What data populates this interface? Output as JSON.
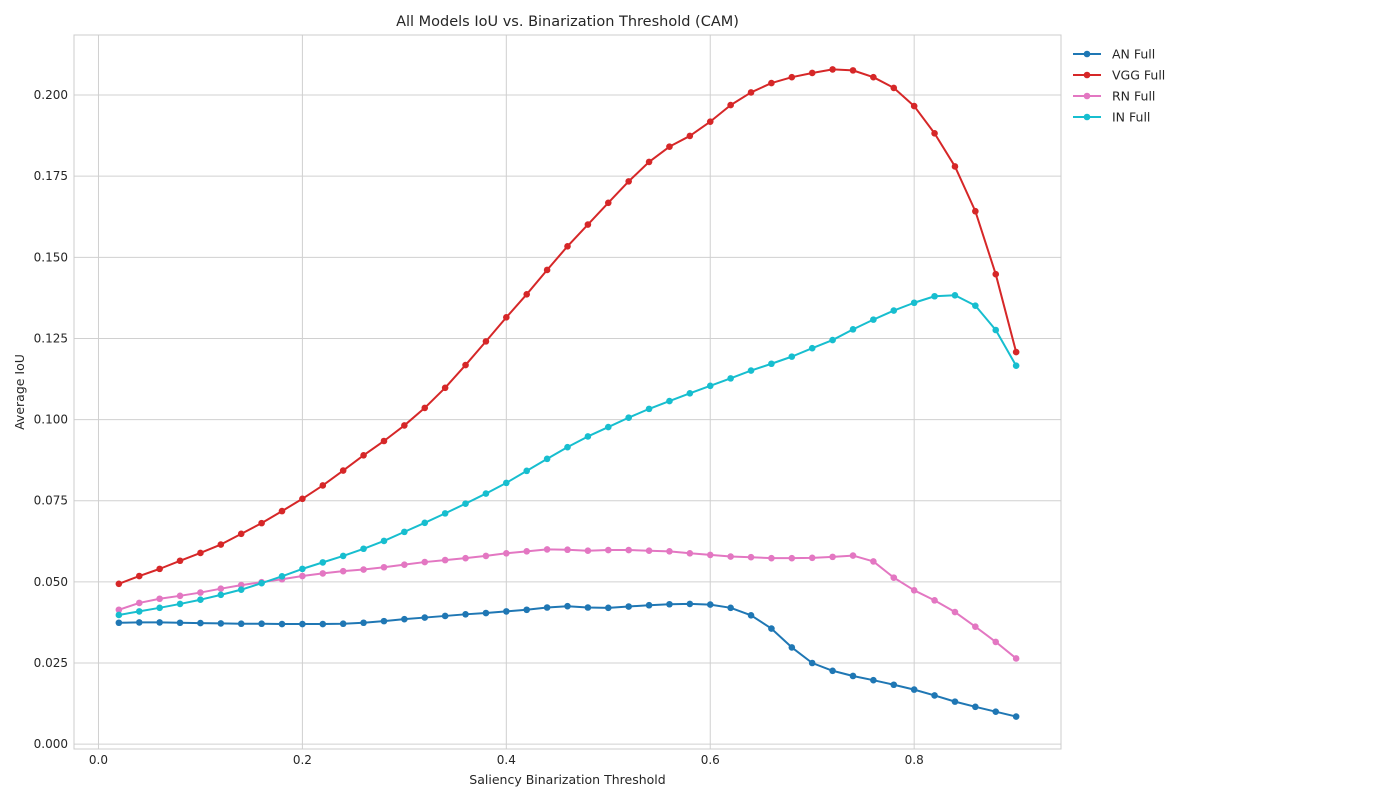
{
  "chart_data": {
    "type": "line",
    "title": "All Models IoU vs. Binarization Threshold (CAM)",
    "xlabel": "Saliency Binarization Threshold",
    "ylabel": "Average IoU",
    "xlim": [
      -0.024,
      0.944
    ],
    "ylim": [
      -0.0015,
      0.2185
    ],
    "x_ticks": [
      0.0,
      0.2,
      0.4,
      0.6,
      0.8
    ],
    "x_tick_labels": [
      "0.0",
      "0.2",
      "0.4",
      "0.6",
      "0.8"
    ],
    "y_ticks": [
      0.0,
      0.025,
      0.05,
      0.075,
      0.1,
      0.125,
      0.15,
      0.175,
      0.2
    ],
    "y_tick_labels": [
      "0.000",
      "0.025",
      "0.050",
      "0.075",
      "0.100",
      "0.125",
      "0.150",
      "0.175",
      "0.200"
    ],
    "grid": true,
    "legend_position": "outside-upper-right",
    "x": [
      0.02,
      0.04,
      0.06,
      0.08,
      0.1,
      0.12,
      0.14,
      0.16,
      0.18,
      0.2,
      0.22,
      0.24,
      0.26,
      0.28,
      0.3,
      0.32,
      0.34,
      0.36,
      0.38,
      0.4,
      0.42,
      0.44,
      0.46,
      0.48,
      0.5,
      0.52,
      0.54,
      0.56,
      0.58,
      0.6,
      0.62,
      0.64,
      0.66,
      0.68,
      0.7,
      0.72,
      0.74,
      0.76,
      0.78,
      0.8,
      0.82,
      0.84,
      0.86,
      0.88,
      0.9
    ],
    "series": [
      {
        "name": "AN Full",
        "color": "#1f77b4",
        "values": [
          0.0374,
          0.0375,
          0.0375,
          0.0374,
          0.0373,
          0.0372,
          0.0371,
          0.0371,
          0.037,
          0.037,
          0.037,
          0.0371,
          0.0374,
          0.0379,
          0.0385,
          0.039,
          0.0395,
          0.04,
          0.0404,
          0.0409,
          0.0414,
          0.0421,
          0.0425,
          0.0421,
          0.042,
          0.0424,
          0.0428,
          0.0431,
          0.0432,
          0.043,
          0.042,
          0.0397,
          0.0356,
          0.0298,
          0.025,
          0.0226,
          0.021,
          0.0197,
          0.0183,
          0.0168,
          0.015,
          0.0131,
          0.0115,
          0.01,
          0.0085
        ]
      },
      {
        "name": "VGG Full",
        "color": "#d62728",
        "values": [
          0.0494,
          0.0518,
          0.054,
          0.0565,
          0.0589,
          0.0615,
          0.0648,
          0.0681,
          0.0718,
          0.0756,
          0.0797,
          0.0843,
          0.089,
          0.0934,
          0.0982,
          0.1036,
          0.1098,
          0.1168,
          0.1241,
          0.1315,
          0.1386,
          0.1461,
          0.1534,
          0.1601,
          0.1668,
          0.1734,
          0.1794,
          0.1841,
          0.1874,
          0.1918,
          0.1969,
          0.2008,
          0.2037,
          0.2055,
          0.2068,
          0.2079,
          0.2076,
          0.2055,
          0.2022,
          0.1966,
          0.1882,
          0.178,
          0.1642,
          0.1448,
          0.1208
        ]
      },
      {
        "name": "RN Full",
        "color": "#e377c2",
        "values": [
          0.0414,
          0.0435,
          0.0448,
          0.0457,
          0.0467,
          0.0479,
          0.049,
          0.0499,
          0.0508,
          0.0518,
          0.0526,
          0.0533,
          0.0538,
          0.0545,
          0.0553,
          0.0561,
          0.0567,
          0.0573,
          0.058,
          0.0588,
          0.0594,
          0.06,
          0.0599,
          0.0596,
          0.0598,
          0.0598,
          0.0596,
          0.0594,
          0.0588,
          0.0583,
          0.0578,
          0.0576,
          0.0573,
          0.0573,
          0.0574,
          0.0577,
          0.0581,
          0.0563,
          0.0513,
          0.0474,
          0.0443,
          0.0407,
          0.0362,
          0.0315,
          0.0264
        ]
      },
      {
        "name": "IN Full",
        "color": "#17becf",
        "values": [
          0.0398,
          0.0409,
          0.042,
          0.0432,
          0.0445,
          0.046,
          0.0476,
          0.0496,
          0.0517,
          0.054,
          0.056,
          0.058,
          0.0602,
          0.0626,
          0.0654,
          0.0682,
          0.0711,
          0.0741,
          0.0772,
          0.0805,
          0.0842,
          0.0879,
          0.0915,
          0.0948,
          0.0977,
          0.1006,
          0.1033,
          0.1057,
          0.1081,
          0.1104,
          0.1127,
          0.1151,
          0.1172,
          0.1194,
          0.122,
          0.1245,
          0.1278,
          0.1308,
          0.1336,
          0.136,
          0.138,
          0.1383,
          0.1351,
          0.1276,
          0.1166
        ]
      }
    ]
  }
}
